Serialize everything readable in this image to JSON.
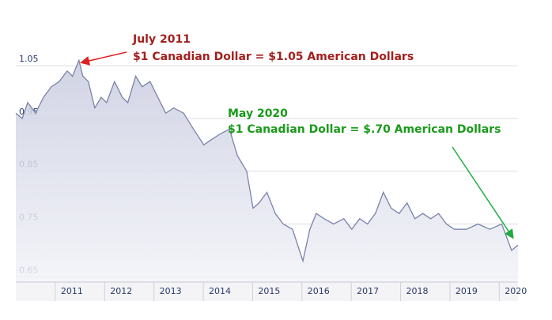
{
  "chart_data": {
    "type": "area",
    "x": [
      2010.2,
      2010.33,
      2010.44,
      2010.6,
      2010.76,
      2010.92,
      2011.08,
      2011.24,
      2011.35,
      2011.48,
      2011.56,
      2011.67,
      2011.8,
      2011.93,
      2012.04,
      2012.2,
      2012.36,
      2012.47,
      2012.63,
      2012.76,
      2012.92,
      2013.08,
      2013.24,
      2013.4,
      2013.6,
      2013.8,
      2014.01,
      2014.17,
      2014.33,
      2014.53,
      2014.69,
      2014.88,
      2015.01,
      2015.13,
      2015.29,
      2015.46,
      2015.62,
      2015.81,
      2016.02,
      2016.16,
      2016.29,
      2016.45,
      2016.64,
      2016.85,
      2017.01,
      2017.17,
      2017.33,
      2017.49,
      2017.65,
      2017.81,
      2017.97,
      2018.13,
      2018.29,
      2018.45,
      2018.61,
      2018.77,
      2018.93,
      2019.09,
      2019.33,
      2019.57,
      2019.81,
      2020.05,
      2020.17,
      2020.25,
      2020.38
    ],
    "values": [
      0.96,
      0.95,
      0.98,
      0.96,
      0.99,
      1.01,
      1.02,
      1.04,
      1.03,
      1.06,
      1.03,
      1.02,
      0.97,
      0.99,
      0.98,
      1.02,
      0.99,
      0.98,
      1.03,
      1.01,
      1.02,
      0.99,
      0.96,
      0.97,
      0.96,
      0.93,
      0.9,
      0.91,
      0.92,
      0.93,
      0.88,
      0.85,
      0.78,
      0.79,
      0.81,
      0.77,
      0.75,
      0.74,
      0.68,
      0.74,
      0.77,
      0.76,
      0.75,
      0.76,
      0.74,
      0.76,
      0.75,
      0.77,
      0.81,
      0.78,
      0.77,
      0.79,
      0.76,
      0.77,
      0.76,
      0.77,
      0.75,
      0.74,
      0.74,
      0.75,
      0.74,
      0.75,
      0.72,
      0.7,
      0.71
    ],
    "color": "#7a82aa",
    "xlim": [
      2010.2,
      2020.38
    ],
    "xticks": [
      2011,
      2012,
      2013,
      2014,
      2015,
      2016,
      2017,
      2018,
      2019,
      2020
    ],
    "ylim": [
      0.64,
      1.14
    ],
    "yticks": [
      0.65,
      0.75,
      0.85,
      0.95,
      1.05
    ],
    "grid": true,
    "annotations": [
      {
        "lines": [
          "July 2011",
          "$1 Canadian Dollar = $1.05 American Dollars"
        ],
        "color": "#a3201e"
      },
      {
        "lines": [
          "May 2020",
          "$1 Canadian Dollar = $.70 American Dollars"
        ],
        "color": "#1a9a1a"
      }
    ]
  }
}
